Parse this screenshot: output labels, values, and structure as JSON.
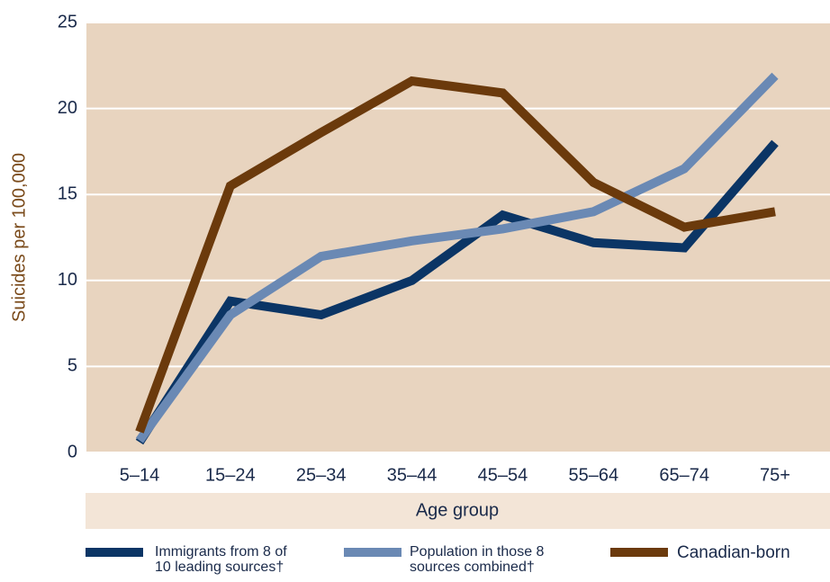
{
  "chart_data": {
    "type": "line",
    "xlabel": "Age group",
    "ylabel": "Suicides per 100,000",
    "categories": [
      "5–14",
      "15–24",
      "25–34",
      "35–44",
      "45–54",
      "55–64",
      "65–74",
      "75+"
    ],
    "series": [
      {
        "name": "Immigrants from 8 of 10 leading sources†",
        "color": "#0b3565",
        "values": [
          0.6,
          8.8,
          8.0,
          10.0,
          13.8,
          12.2,
          11.9,
          18.0
        ]
      },
      {
        "name": "Population in those 8 sources combined†",
        "color": "#6a89b4",
        "values": [
          0.7,
          8.0,
          11.4,
          12.3,
          13.0,
          14.0,
          16.5,
          21.9
        ]
      },
      {
        "name": "Canadian-born",
        "color": "#6b3a0c",
        "values": [
          1.2,
          15.5,
          18.6,
          21.6,
          20.9,
          15.7,
          13.1,
          14.0
        ]
      }
    ],
    "ylim": [
      0,
      25
    ],
    "yticks": [
      0,
      5,
      10,
      15,
      20,
      25
    ],
    "grid": true,
    "legend": "bottom"
  }
}
